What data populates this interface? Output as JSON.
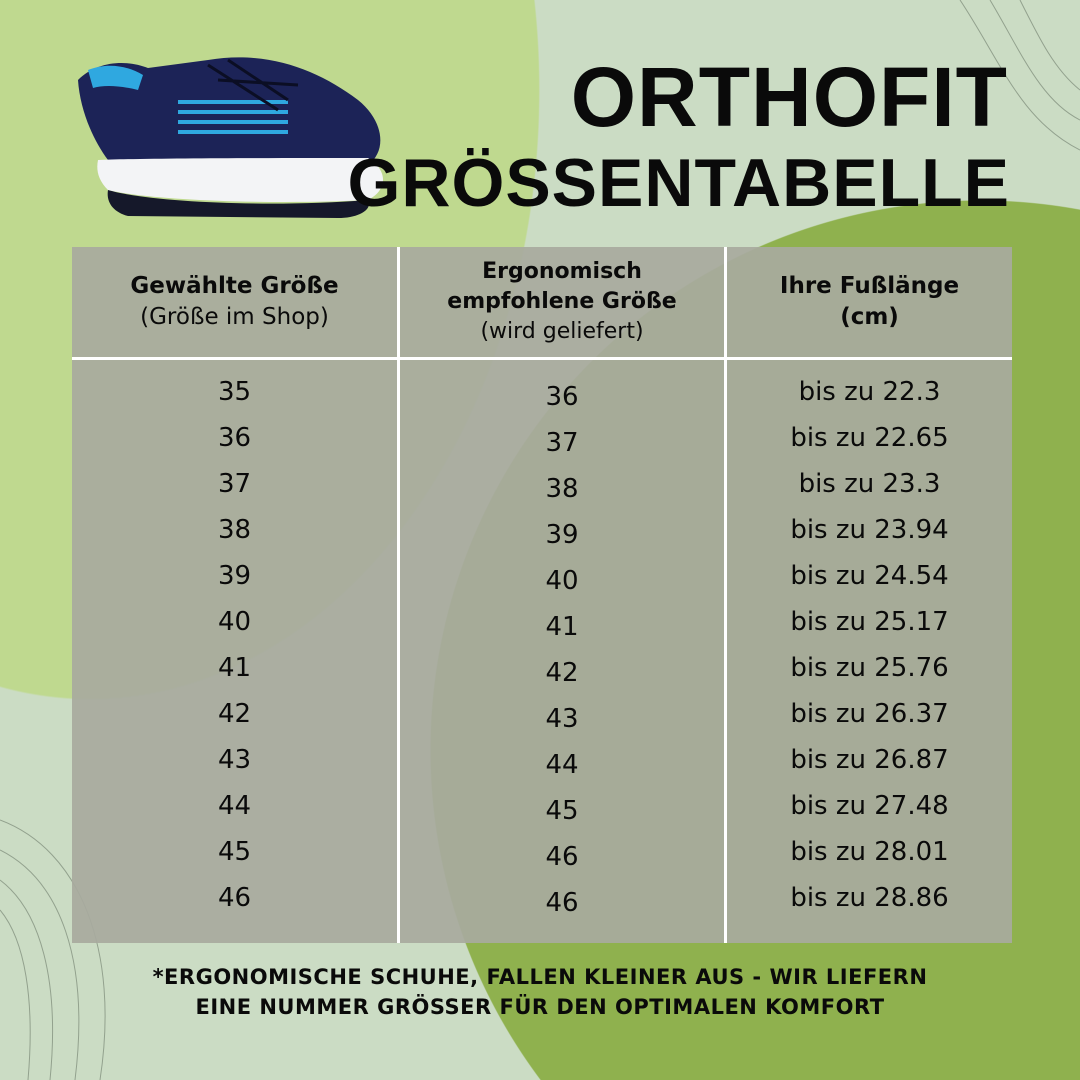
{
  "brand": "ORTHOFIT",
  "title": "GRÖSSENTABELLE",
  "colors": {
    "light_green": "#bfd98f",
    "dark_green": "#8fb14e",
    "pale": "#cbdcc4",
    "table": "#a8aa9e",
    "shoe": "#1c2357",
    "accent": "#2fa8e0"
  },
  "table": {
    "headers": [
      {
        "title": "Gewählte Größe",
        "subtitle": "(Größe im Shop)"
      },
      {
        "title": "Ergonomisch empfohlene Größe",
        "subtitle": "(wird geliefert)"
      },
      {
        "title": "Ihre Fußlänge (cm)",
        "subtitle": ""
      }
    ],
    "rows": [
      [
        "35",
        "36",
        "bis zu 22.3"
      ],
      [
        "36",
        "37",
        "bis zu 22.65"
      ],
      [
        "37",
        "38",
        "bis zu 23.3"
      ],
      [
        "38",
        "39",
        "bis zu 23.94"
      ],
      [
        "39",
        "40",
        "bis zu 24.54"
      ],
      [
        "40",
        "41",
        "bis zu 25.17"
      ],
      [
        "41",
        "42",
        "bis zu 25.76"
      ],
      [
        "42",
        "43",
        "bis zu 26.37"
      ],
      [
        "43",
        "44",
        "bis zu 26.87"
      ],
      [
        "44",
        "45",
        "bis zu 27.48"
      ],
      [
        "45",
        "46",
        "bis zu 28.01"
      ],
      [
        "46",
        "46",
        "bis zu 28.86"
      ]
    ]
  },
  "footnote": [
    "*ERGONOMISCHE SCHUHE, FALLEN KLEINER AUS - WIR LIEFERN",
    "EINE NUMMER GRÖSSER FÜR DEN OPTIMALEN KOMFORT"
  ]
}
